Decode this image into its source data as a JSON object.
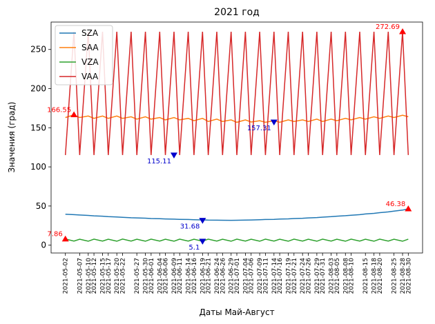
{
  "chart_data": {
    "type": "line",
    "title": "2021 год",
    "xlabel": "Даты Май-Август",
    "ylabel": "Значения (град)",
    "ylim": [
      -10,
      285
    ],
    "yticks": [
      0,
      50,
      100,
      150,
      200,
      250
    ],
    "grid": false,
    "legend_position": "top-left",
    "x_dates": [
      "2021-05-02",
      "2021-05-05",
      "2021-05-07",
      "2021-05-10",
      "2021-05-12",
      "2021-05-15",
      "2021-05-17",
      "2021-05-20",
      "2021-05-22",
      "2021-05-25",
      "2021-05-27",
      "2021-05-30",
      "2021-06-01",
      "2021-06-04",
      "2021-06-06",
      "2021-06-09",
      "2021-06-11",
      "2021-06-14",
      "2021-06-16",
      "2021-06-19",
      "2021-06-21",
      "2021-06-24",
      "2021-06-26",
      "2021-06-29",
      "2021-07-01",
      "2021-07-04",
      "2021-07-06",
      "2021-07-09",
      "2021-07-11",
      "2021-07-14",
      "2021-07-16",
      "2021-07-19",
      "2021-07-21",
      "2021-07-24",
      "2021-07-26",
      "2021-07-29",
      "2021-07-31",
      "2021-08-03",
      "2021-08-05",
      "2021-08-08",
      "2021-08-10",
      "2021-08-13",
      "2021-08-15",
      "2021-08-18",
      "2021-08-20",
      "2021-08-23",
      "2021-08-25",
      "2021-08-28",
      "2021-08-30"
    ],
    "x_ticks": [
      "2021-05-02",
      "2021-05-07",
      "2021-05-10",
      "2021-05-12",
      "2021-05-15",
      "2021-05-17",
      "2021-05-20",
      "2021-05-22",
      "2021-05-27",
      "2021-05-30",
      "2021-06-01",
      "2021-06-04",
      "2021-06-06",
      "2021-06-09",
      "2021-06-11",
      "2021-06-14",
      "2021-06-16",
      "2021-06-19",
      "2021-06-21",
      "2021-06-24",
      "2021-06-26",
      "2021-06-29",
      "2021-07-01",
      "2021-07-04",
      "2021-07-06",
      "2021-07-09",
      "2021-07-11",
      "2021-07-14",
      "2021-07-16",
      "2021-07-19",
      "2021-07-21",
      "2021-07-24",
      "2021-07-26",
      "2021-07-29",
      "2021-07-31",
      "2021-08-03",
      "2021-08-05",
      "2021-08-08",
      "2021-08-10",
      "2021-08-15",
      "2021-08-18",
      "2021-08-20",
      "2021-08-25",
      "2021-08-28",
      "2021-08-30"
    ],
    "series": [
      {
        "name": "SZA",
        "color": "#1f77b4",
        "values": [
          39.5,
          39,
          38.5,
          38,
          37.5,
          37,
          36.5,
          36,
          35.5,
          35,
          34.8,
          34.5,
          34,
          33.8,
          33.5,
          33.2,
          33,
          32.8,
          32.5,
          32.3,
          32,
          31.9,
          31.8,
          31.7,
          31.8,
          32,
          32.2,
          32.5,
          32.8,
          33,
          33.3,
          33.6,
          34,
          34.4,
          34.8,
          35.3,
          35.8,
          36.4,
          37,
          37.6,
          38.3,
          39,
          39.8,
          40.6,
          41.5,
          42.5,
          43.5,
          44.8,
          46.38
        ]
      },
      {
        "name": "SAA",
        "color": "#ff7f0e",
        "values": [
          163,
          166.55,
          163,
          165,
          162,
          165,
          162,
          165,
          162,
          164,
          161,
          164,
          161,
          163,
          160,
          163,
          160,
          162,
          159,
          162,
          158,
          161,
          158,
          160,
          157,
          160,
          157.31,
          159,
          157,
          159,
          157,
          160,
          158,
          160,
          158,
          161,
          158,
          161,
          159,
          162,
          160,
          163,
          161,
          164,
          162,
          165,
          163,
          166,
          164
        ]
      },
      {
        "name": "VZA",
        "color": "#2ca02c",
        "values": [
          7.86,
          5.2,
          7.6,
          5.1,
          7.7,
          5.2,
          7.6,
          5.1,
          7.8,
          5.2,
          7.6,
          5.1,
          7.7,
          5.2,
          7.6,
          5.1,
          7.7,
          5.2,
          7.6,
          5.1,
          7.7,
          5.2,
          7.6,
          5.1,
          7.7,
          5.2,
          7.6,
          5.1,
          7.7,
          5.2,
          7.6,
          5.1,
          7.7,
          5.2,
          7.6,
          5.1,
          7.7,
          5.2,
          7.6,
          5.1,
          7.7,
          5.2,
          7.6,
          5.1,
          7.7,
          5.2,
          7.6,
          5.1,
          7.7
        ]
      },
      {
        "name": "VAA",
        "color": "#d62728",
        "values": [
          115.11,
          272.69,
          115.11,
          272.69,
          115.11,
          272.69,
          115.11,
          272.69,
          115.11,
          272.69,
          115.11,
          272.69,
          115.11,
          272.69,
          115.11,
          272.69,
          115.11,
          272.69,
          115.11,
          272.69,
          115.11,
          272.69,
          115.11,
          272.69,
          115.11,
          272.69,
          115.11,
          272.69,
          115.11,
          272.69,
          115.11,
          272.69,
          115.11,
          272.69,
          115.11,
          272.69,
          115.11,
          272.69,
          115.11,
          272.69,
          115.11,
          272.69,
          115.11,
          272.69,
          115.11,
          272.69,
          115.11,
          272.69,
          115.11
        ]
      }
    ],
    "annotations": [
      {
        "text": "166.55",
        "date": "2021-05-05",
        "y": 166.55,
        "kind": "max",
        "color": "#ff0000"
      },
      {
        "text": "157.31",
        "date": "2021-07-14",
        "y": 157.31,
        "kind": "min",
        "color": "#0000cc"
      },
      {
        "text": "115.11",
        "date": "2021-06-09",
        "y": 115.11,
        "kind": "min",
        "color": "#0000cc"
      },
      {
        "text": "272.69",
        "date": "2021-08-28",
        "y": 272.69,
        "kind": "max",
        "color": "#ff0000"
      },
      {
        "text": "7.86",
        "date": "2021-05-02",
        "y": 7.86,
        "kind": "max",
        "color": "#ff0000"
      },
      {
        "text": "5.1",
        "date": "2021-06-19",
        "y": 5.1,
        "kind": "min",
        "color": "#0000cc"
      },
      {
        "text": "31.68",
        "date": "2021-06-19",
        "y": 31.68,
        "kind": "min",
        "color": "#0000cc"
      },
      {
        "text": "46.38",
        "date": "2021-08-30",
        "y": 46.38,
        "kind": "max",
        "color": "#ff0000"
      }
    ]
  }
}
